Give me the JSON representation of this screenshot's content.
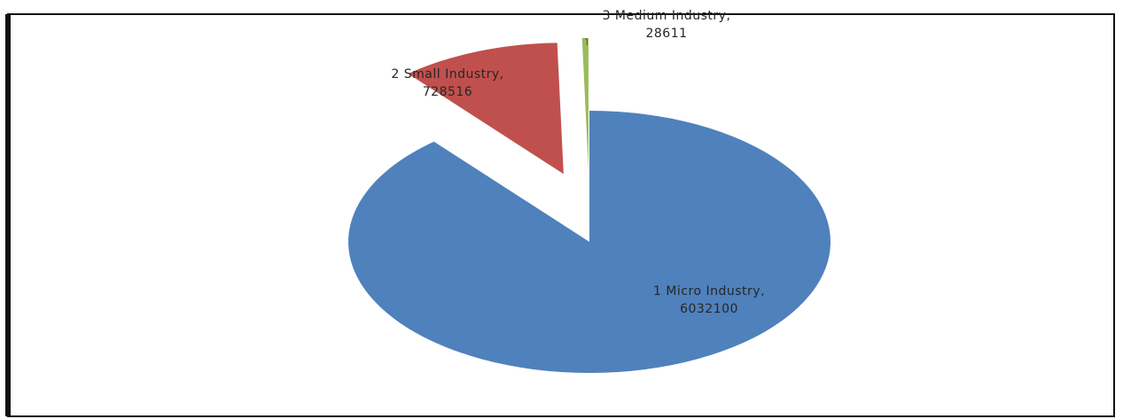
{
  "chart_data": {
    "type": "pie",
    "categories": [
      "1 Micro Industry",
      "2 Small Industry",
      "3 Medium Industry"
    ],
    "values": [
      6032100,
      728516,
      28611
    ],
    "colors": [
      "#4f81bd",
      "#c0504d",
      "#9bbb59"
    ],
    "separator": ","
  }
}
